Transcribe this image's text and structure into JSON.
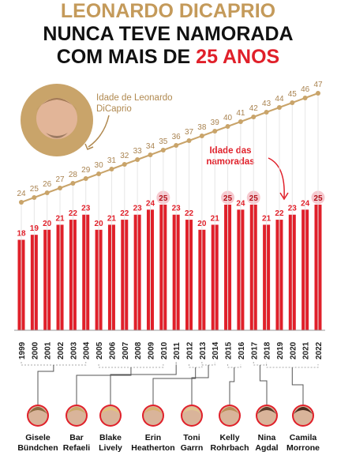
{
  "chart_data": {
    "type": "bar_line",
    "title_line1": "LEONARDO DICAPRIO",
    "title_line2": "NUNCA TEVE NAMORADA",
    "title_line3": "COM MAIS DE",
    "title_line3_highlight": "25 ANOS",
    "categories": [
      "1999",
      "2000",
      "2001",
      "2002",
      "2003",
      "2004",
      "2005",
      "2006",
      "2007",
      "2008",
      "2009",
      "2010",
      "2011",
      "2012",
      "2013",
      "2014",
      "2015",
      "2016",
      "2017",
      "2018",
      "2019",
      "2020",
      "2021",
      "2022"
    ],
    "series": [
      {
        "name": "Idade de Leonardo DiCaprio",
        "type": "line",
        "axis": "y2",
        "color": "#c9a46a",
        "values": [
          24,
          25,
          26,
          27,
          28,
          29,
          30,
          31,
          32,
          33,
          34,
          35,
          36,
          37,
          38,
          39,
          40,
          41,
          42,
          43,
          44,
          45,
          46,
          47
        ]
      },
      {
        "name": "Idade das namoradas",
        "type": "bar",
        "axis": "y",
        "color": "#e0202a",
        "values": [
          18,
          19,
          20,
          21,
          22,
          23,
          20,
          21,
          22,
          23,
          24,
          25,
          23,
          22,
          20,
          21,
          25,
          24,
          25,
          21,
          22,
          23,
          24,
          25
        ]
      }
    ],
    "ylim": [
      0,
      50
    ],
    "y2lim": [
      -3,
      50
    ],
    "girlfriends": [
      [
        "Gisele",
        "Bündchen"
      ],
      [
        "Bar",
        "Refaeli"
      ],
      [
        "Blake",
        "Lively"
      ],
      [
        "Erin",
        "Heatherton"
      ],
      [
        "Toni",
        "Garrn"
      ],
      [
        "Kelly",
        "Rohrbach"
      ],
      [
        "Nina",
        "Agdal"
      ],
      [
        "Camila",
        "Morrone"
      ]
    ]
  }
}
